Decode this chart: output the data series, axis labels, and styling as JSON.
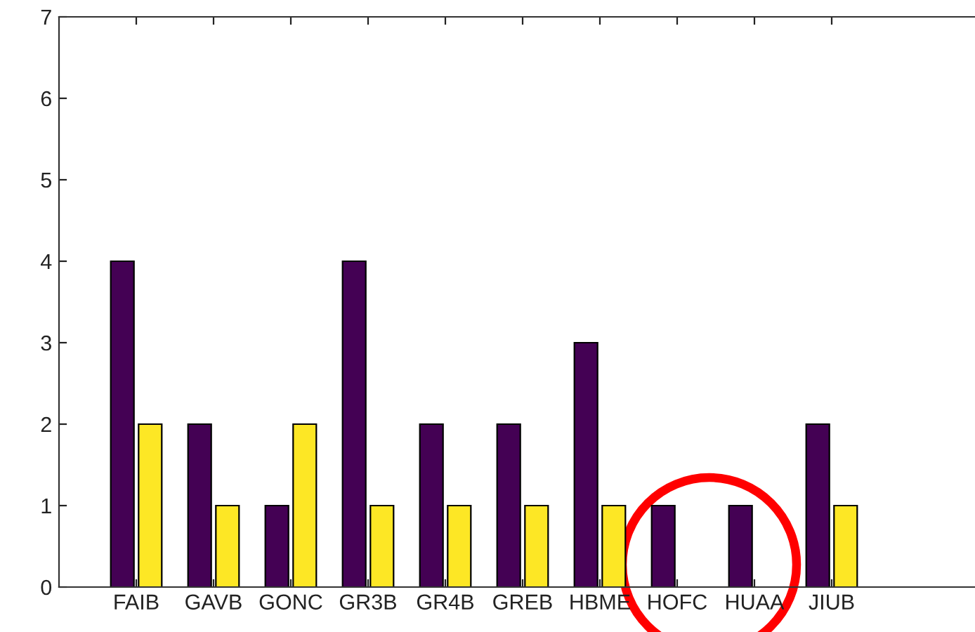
{
  "chart_data": {
    "type": "bar",
    "categories": [
      "FAIB",
      "GAVB",
      "GONC",
      "GR3B",
      "GR4B",
      "GREB",
      "HBME",
      "HOFC",
      "HUAA",
      "JIUB"
    ],
    "series": [
      {
        "color": "#440154",
        "values": [
          4,
          2,
          1,
          4,
          2,
          2,
          3,
          1,
          1,
          2
        ]
      },
      {
        "color": "#fde725",
        "values": [
          2,
          1,
          2,
          1,
          1,
          1,
          1,
          0,
          0,
          1
        ]
      }
    ],
    "ylim": [
      0,
      7
    ],
    "yticks": [
      0,
      1,
      2,
      3,
      4,
      5,
      6,
      7
    ],
    "grid": false
  }
}
